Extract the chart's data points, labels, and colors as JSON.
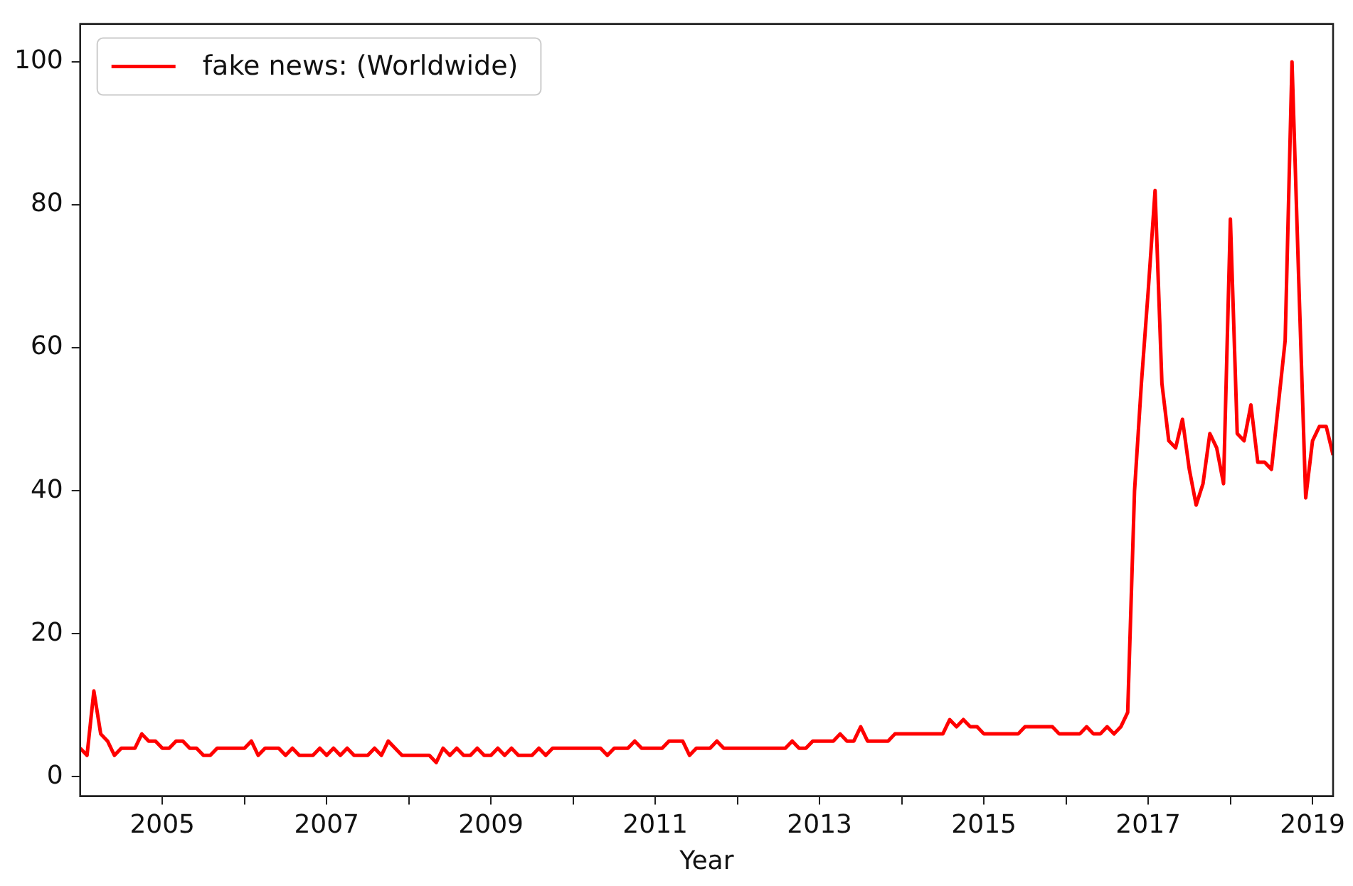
{
  "chart_data": {
    "type": "line",
    "xlabel": "Year",
    "legend": "top left",
    "grid": false,
    "marker": "none",
    "line_style": "solid",
    "xlim": [
      "2004-01",
      "2019-04"
    ],
    "xticks": [
      {
        "value": "2005",
        "label": "2005"
      },
      {
        "value": "2006",
        "label": null
      },
      {
        "value": "2007",
        "label": "2007"
      },
      {
        "value": "2008",
        "label": null
      },
      {
        "value": "2009",
        "label": "2009"
      },
      {
        "value": "2010",
        "label": null
      },
      {
        "value": "2011",
        "label": "2011"
      },
      {
        "value": "2012",
        "label": null
      },
      {
        "value": "2013",
        "label": "2013"
      },
      {
        "value": "2014",
        "label": null
      },
      {
        "value": "2015",
        "label": "2015"
      },
      {
        "value": "2016",
        "label": null
      },
      {
        "value": "2017",
        "label": "2017"
      },
      {
        "value": "2018",
        "label": null
      },
      {
        "value": "2019",
        "label": "2019"
      }
    ],
    "ylim": [
      -2.7,
      105.3
    ],
    "yticks": [
      0,
      20,
      40,
      60,
      80,
      100
    ],
    "x": [
      "2004-01",
      "2004-02",
      "2004-03",
      "2004-04",
      "2004-05",
      "2004-06",
      "2004-07",
      "2004-08",
      "2004-09",
      "2004-10",
      "2004-11",
      "2004-12",
      "2005-01",
      "2005-02",
      "2005-03",
      "2005-04",
      "2005-05",
      "2005-06",
      "2005-07",
      "2005-08",
      "2005-09",
      "2005-10",
      "2005-11",
      "2005-12",
      "2006-01",
      "2006-02",
      "2006-03",
      "2006-04",
      "2006-05",
      "2006-06",
      "2006-07",
      "2006-08",
      "2006-09",
      "2006-10",
      "2006-11",
      "2006-12",
      "2007-01",
      "2007-02",
      "2007-03",
      "2007-04",
      "2007-05",
      "2007-06",
      "2007-07",
      "2007-08",
      "2007-09",
      "2007-10",
      "2007-11",
      "2007-12",
      "2008-01",
      "2008-02",
      "2008-03",
      "2008-04",
      "2008-05",
      "2008-06",
      "2008-07",
      "2008-08",
      "2008-09",
      "2008-10",
      "2008-11",
      "2008-12",
      "2009-01",
      "2009-02",
      "2009-03",
      "2009-04",
      "2009-05",
      "2009-06",
      "2009-07",
      "2009-08",
      "2009-09",
      "2009-10",
      "2009-11",
      "2009-12",
      "2010-01",
      "2010-02",
      "2010-03",
      "2010-04",
      "2010-05",
      "2010-06",
      "2010-07",
      "2010-08",
      "2010-09",
      "2010-10",
      "2010-11",
      "2010-12",
      "2011-01",
      "2011-02",
      "2011-03",
      "2011-04",
      "2011-05",
      "2011-06",
      "2011-07",
      "2011-08",
      "2011-09",
      "2011-10",
      "2011-11",
      "2011-12",
      "2012-01",
      "2012-02",
      "2012-03",
      "2012-04",
      "2012-05",
      "2012-06",
      "2012-07",
      "2012-08",
      "2012-09",
      "2012-10",
      "2012-11",
      "2012-12",
      "2013-01",
      "2013-02",
      "2013-03",
      "2013-04",
      "2013-05",
      "2013-06",
      "2013-07",
      "2013-08",
      "2013-09",
      "2013-10",
      "2013-11",
      "2013-12",
      "2014-01",
      "2014-02",
      "2014-03",
      "2014-04",
      "2014-05",
      "2014-06",
      "2014-07",
      "2014-08",
      "2014-09",
      "2014-10",
      "2014-11",
      "2014-12",
      "2015-01",
      "2015-02",
      "2015-03",
      "2015-04",
      "2015-05",
      "2015-06",
      "2015-07",
      "2015-08",
      "2015-09",
      "2015-10",
      "2015-11",
      "2015-12",
      "2016-01",
      "2016-02",
      "2016-03",
      "2016-04",
      "2016-05",
      "2016-06",
      "2016-07",
      "2016-08",
      "2016-09",
      "2016-10",
      "2016-11",
      "2016-12",
      "2017-01",
      "2017-02",
      "2017-03",
      "2017-04",
      "2017-05",
      "2017-06",
      "2017-07",
      "2017-08",
      "2017-09",
      "2017-10",
      "2017-11",
      "2017-12",
      "2018-01",
      "2018-02",
      "2018-03",
      "2018-04",
      "2018-05",
      "2018-06",
      "2018-07",
      "2018-08",
      "2018-09",
      "2018-10",
      "2018-11",
      "2018-12",
      "2019-01",
      "2019-02",
      "2019-03",
      "2019-04"
    ],
    "series": [
      {
        "name": "fake news: (Worldwide)",
        "color": "#ff0000",
        "values": [
          4,
          3,
          12,
          6,
          5,
          3,
          4,
          4,
          4,
          6,
          5,
          5,
          4,
          4,
          5,
          5,
          4,
          4,
          3,
          3,
          4,
          4,
          4,
          4,
          4,
          5,
          3,
          4,
          4,
          4,
          3,
          4,
          3,
          3,
          3,
          4,
          3,
          4,
          3,
          4,
          3,
          3,
          3,
          4,
          3,
          5,
          4,
          3,
          3,
          3,
          3,
          3,
          2,
          4,
          3,
          4,
          3,
          3,
          4,
          3,
          3,
          4,
          3,
          4,
          3,
          3,
          3,
          4,
          3,
          4,
          4,
          4,
          4,
          4,
          4,
          4,
          4,
          3,
          4,
          4,
          4,
          5,
          4,
          4,
          4,
          4,
          5,
          5,
          5,
          3,
          4,
          4,
          4,
          5,
          4,
          4,
          4,
          4,
          4,
          4,
          4,
          4,
          4,
          4,
          5,
          4,
          4,
          5,
          5,
          5,
          5,
          6,
          5,
          5,
          7,
          5,
          5,
          5,
          5,
          6,
          6,
          6,
          6,
          6,
          6,
          6,
          6,
          8,
          7,
          8,
          7,
          7,
          6,
          6,
          6,
          6,
          6,
          6,
          7,
          7,
          7,
          7,
          7,
          6,
          6,
          6,
          6,
          7,
          6,
          6,
          7,
          6,
          7,
          9,
          40,
          55,
          68,
          82,
          55,
          47,
          46,
          50,
          43,
          38,
          41,
          48,
          46,
          41,
          78,
          48,
          47,
          52,
          44,
          44,
          43,
          52,
          61,
          100,
          69,
          39,
          47,
          49,
          49,
          45
        ]
      }
    ]
  }
}
